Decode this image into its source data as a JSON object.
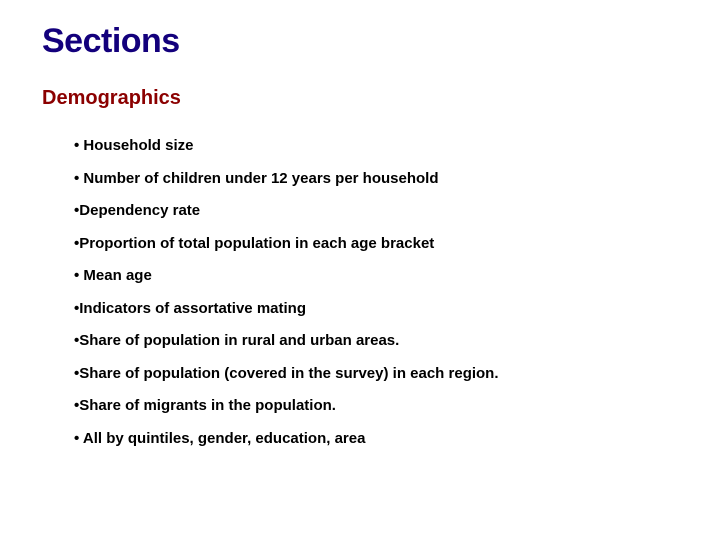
{
  "title": "Sections",
  "subtitle": "Demographics",
  "title_color": "#13007c",
  "subtitle_color": "#8b0000",
  "text_color": "#000000",
  "background_color": "#ffffff",
  "title_fontsize": 34,
  "subtitle_fontsize": 20,
  "bullet_fontsize": 15,
  "bullets": [
    "Household size",
    "Number of children under 12 years per household",
    "Dependency rate",
    "Proportion of total population in each age bracket",
    "Mean age",
    "Indicators of assortative mating",
    "Share of population in rural and urban areas.",
    "Share of population (covered in the survey) in each region.",
    "Share of migrants in the population.",
    "All by quintiles, gender, education, area"
  ],
  "bullet_spacing": [
    " ",
    " ",
    "",
    "",
    " ",
    "",
    "",
    "",
    "",
    " "
  ]
}
